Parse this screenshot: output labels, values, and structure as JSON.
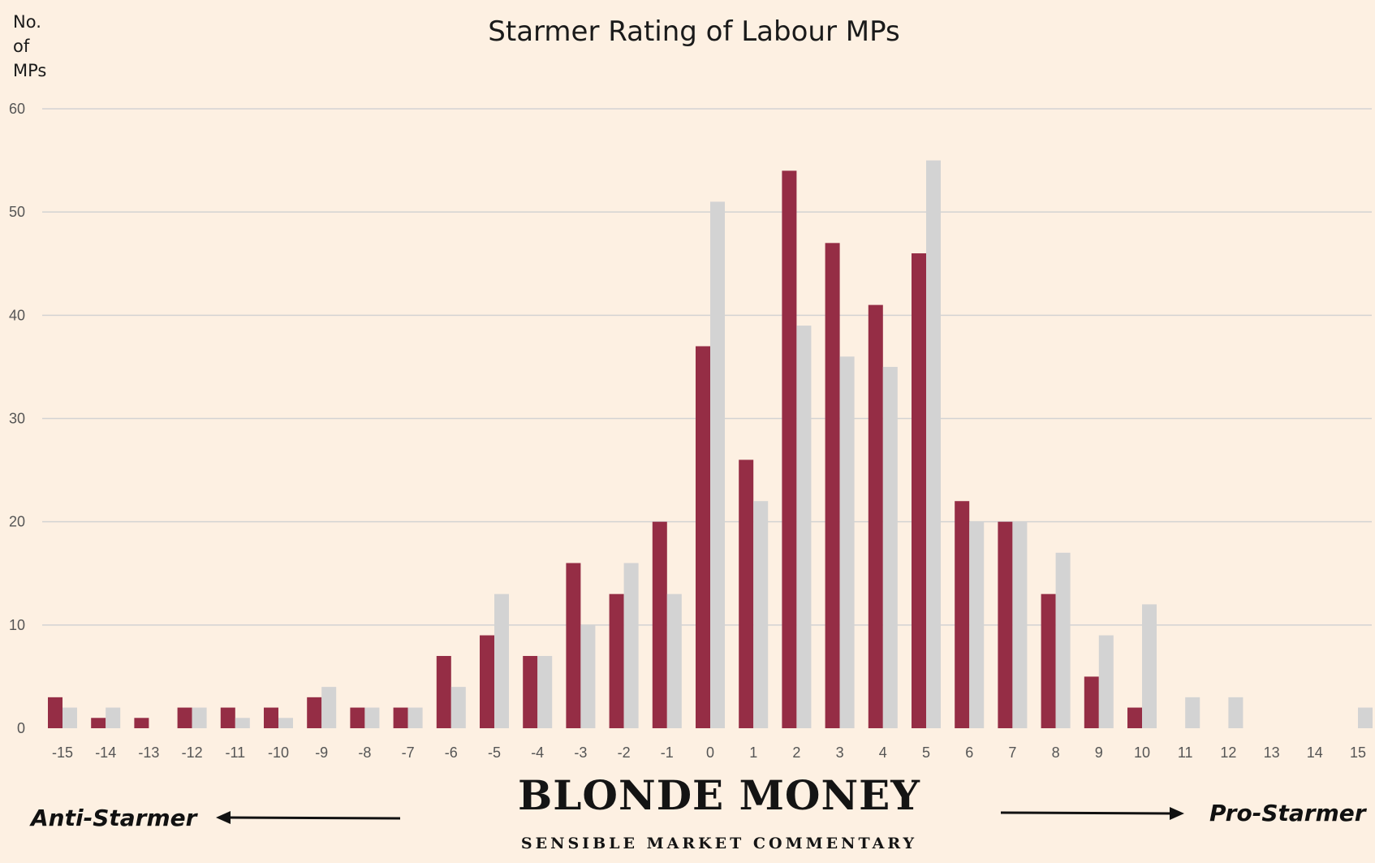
{
  "chart_data": {
    "type": "bar",
    "title": "Starmer Rating of Labour MPs",
    "ylabel_lines": [
      "No.",
      "of",
      "MPs"
    ],
    "xlabel": "",
    "categories": [
      "-15",
      "-14",
      "-13",
      "-12",
      "-11",
      "-10",
      "-9",
      "-8",
      "-7",
      "-6",
      "-5",
      "-4",
      "-3",
      "-2",
      "-1",
      "0",
      "1",
      "2",
      "3",
      "4",
      "5",
      "6",
      "7",
      "8",
      "9",
      "10",
      "11",
      "12",
      "13",
      "14",
      "15"
    ],
    "series": [
      {
        "color": "#952d45",
        "values": [
          3,
          1,
          1,
          2,
          2,
          2,
          3,
          2,
          2,
          7,
          9,
          7,
          16,
          13,
          20,
          37,
          26,
          54,
          47,
          41,
          46,
          22,
          20,
          13,
          5,
          2,
          0,
          0,
          0,
          0,
          0
        ]
      },
      {
        "color": "#d3d3d3",
        "values": [
          2,
          2,
          0,
          2,
          1,
          1,
          4,
          2,
          2,
          4,
          13,
          7,
          10,
          16,
          13,
          51,
          22,
          39,
          36,
          35,
          55,
          20,
          20,
          17,
          9,
          12,
          3,
          3,
          0,
          0,
          2
        ]
      }
    ],
    "ylim": [
      0,
      60
    ],
    "yticks": [
      0,
      10,
      20,
      30,
      40,
      50,
      60
    ],
    "grid": true
  },
  "branding": {
    "name": "BLONDE MONEY",
    "tagline": "SENSIBLE MARKET COMMENTARY"
  },
  "annotations": {
    "left": "Anti-Starmer",
    "right": "Pro-Starmer"
  }
}
